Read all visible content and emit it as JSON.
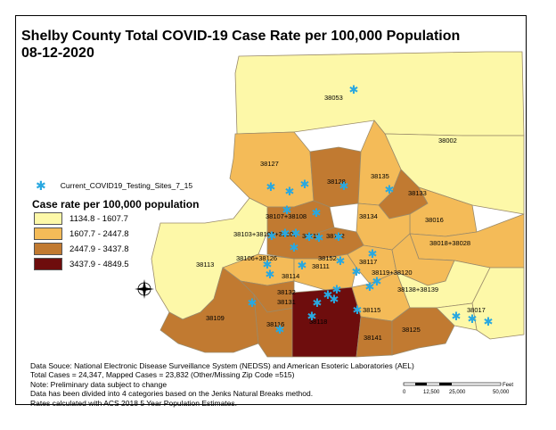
{
  "title": {
    "line1": "Shelby County Total COVID-19 Case Rate per 100,000 Population",
    "line2": "08-12-2020"
  },
  "legend": {
    "sites_label": "Current_COVID19_Testing_Sites_7_15",
    "heading": "Case rate per 100,000 population",
    "classes": [
      {
        "label": "1134.8 - 1607.7",
        "color": "#fdf8a8"
      },
      {
        "label": "1607.7 - 2447.8",
        "color": "#f4bb58"
      },
      {
        "label": "2447.9 - 3437.8",
        "color": "#c17a31"
      },
      {
        "label": "3437.9 - 4849.5",
        "color": "#6e0d0d"
      }
    ]
  },
  "zip_labels": [
    "38053",
    "38002",
    "38127",
    "38128",
    "38135",
    "38133",
    "38107+38108",
    "38134",
    "38016",
    "38103+38104+38105",
    "38112",
    "38122",
    "38018+38028",
    "38113",
    "38106+38126",
    "38152",
    "38111",
    "38117",
    "38119+38120",
    "38114",
    "38138+38139",
    "38132",
    "38131",
    "38118",
    "38115",
    "38017",
    "38109",
    "38116",
    "38141",
    "38125"
  ],
  "site_color": "#29a8e0",
  "notes": [
    "Data Souce: National Electronic Disease Surveillance System (NEDSS) and American Esoteric Laboratories (AEL)",
    "Total Cases = 24,347, Mapped Cases = 23,832 (Other/Missing Zip Code =515)",
    "Note: Preliminary data subject to change",
    "Data has been divided into 4 categories based on the Jenks Natural Breaks method.",
    "Rates calculated with ACS 2018 5 Year Population Estimates."
  ],
  "scale_bar": {
    "ticks": [
      "0",
      "12,500",
      "25,000",
      "50,000"
    ],
    "unit": "Feet"
  }
}
